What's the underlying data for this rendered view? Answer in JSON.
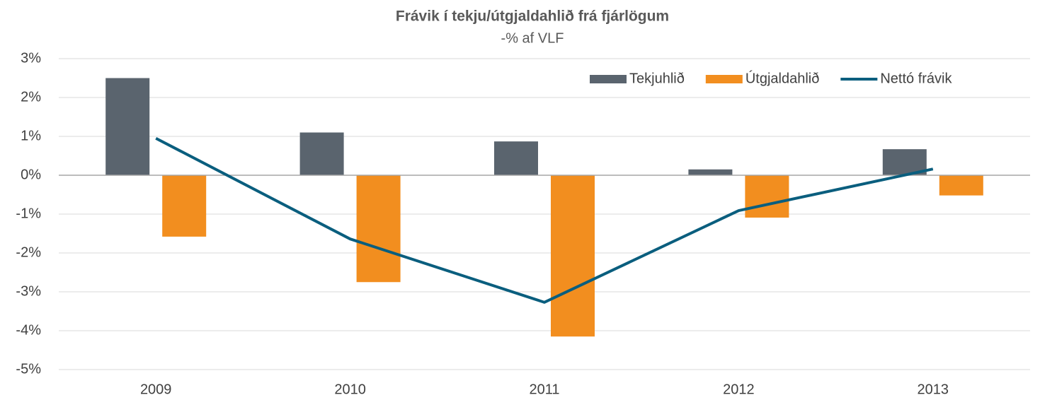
{
  "chart_data": {
    "type": "bar",
    "title": "Frávik í tekju/útgjaldahlið frá fjárlögum",
    "subtitle": "-% af VLF",
    "categories": [
      "2009",
      "2010",
      "2011",
      "2012",
      "2013"
    ],
    "series": [
      {
        "name": "Tekjuhlið",
        "type": "bar",
        "color": "#5a646e",
        "values": [
          2.5,
          1.1,
          0.87,
          0.15,
          0.67
        ]
      },
      {
        "name": "Útgjaldahlið",
        "type": "bar",
        "color": "#f28e1f",
        "values": [
          -1.58,
          -2.75,
          -4.15,
          -1.09,
          -0.52
        ]
      },
      {
        "name": "Nettó frávik",
        "type": "line",
        "color": "#0a5e7e",
        "values": [
          0.95,
          -1.64,
          -3.27,
          -0.91,
          0.16
        ]
      }
    ],
    "ylim": [
      -5,
      3
    ],
    "yticks": [
      {
        "value": -5,
        "label": "-5%"
      },
      {
        "value": -4,
        "label": "-4%"
      },
      {
        "value": -3,
        "label": "-3%"
      },
      {
        "value": -2,
        "label": "-2%"
      },
      {
        "value": -1,
        "label": "-1%"
      },
      {
        "value": 0,
        "label": "0%"
      },
      {
        "value": 1,
        "label": "1%"
      },
      {
        "value": 2,
        "label": "2%"
      },
      {
        "value": 3,
        "label": "3%"
      }
    ],
    "grid": true,
    "legend": "top-right"
  }
}
